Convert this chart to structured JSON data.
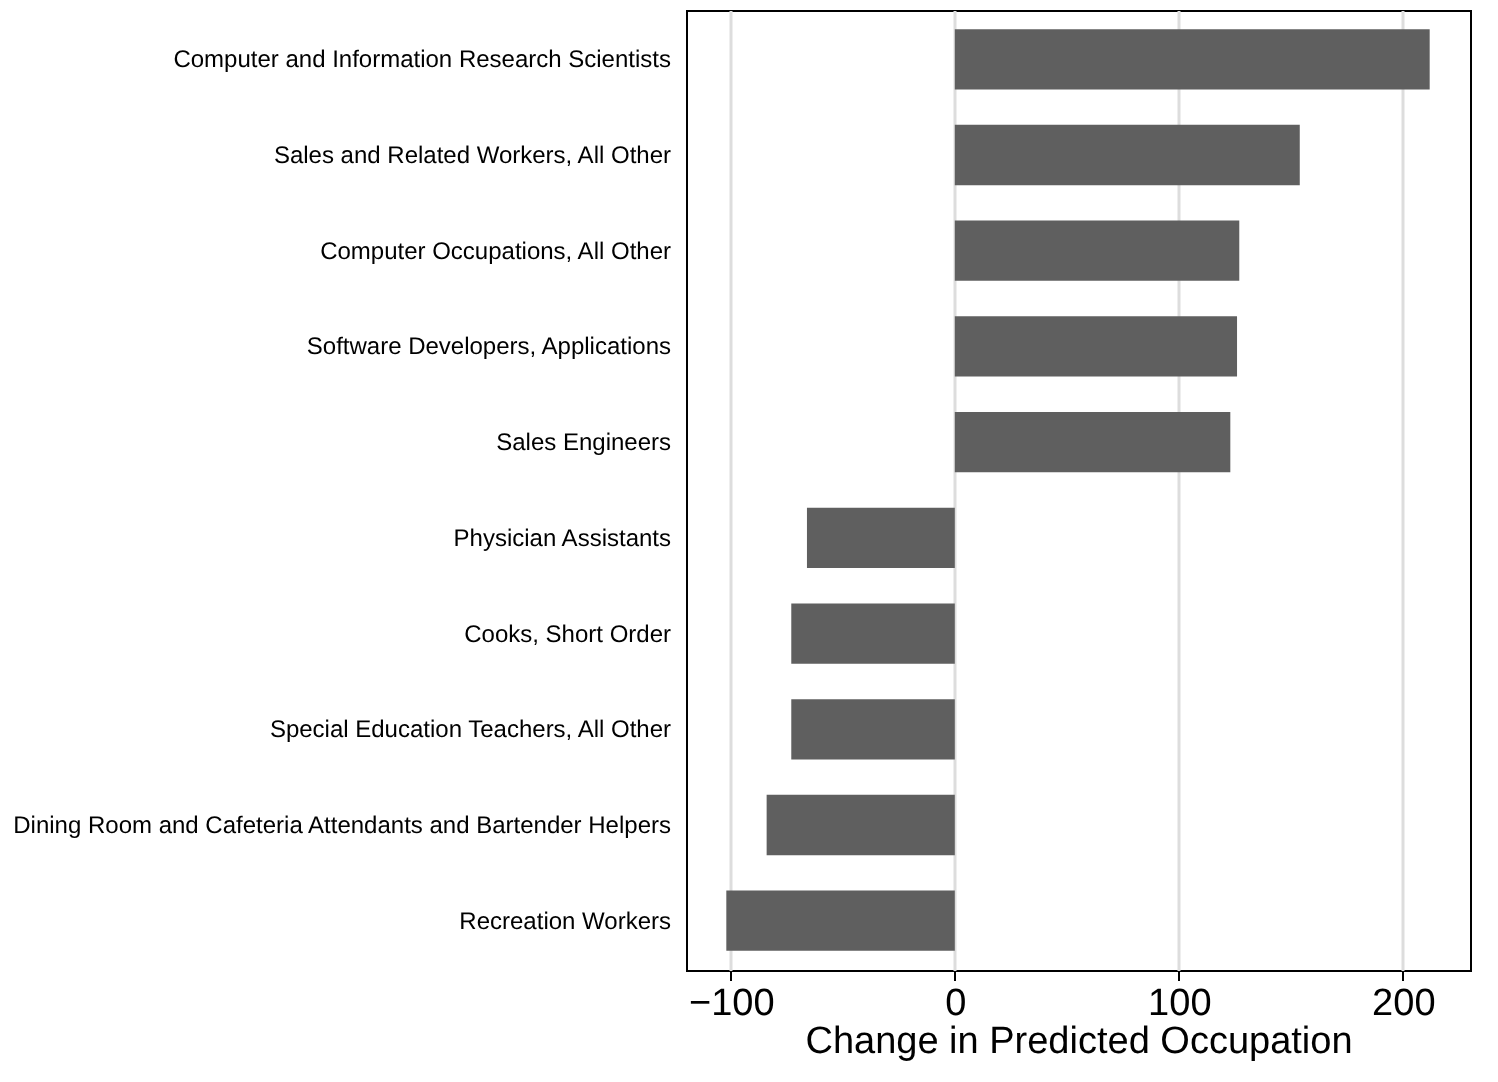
{
  "chart_data": {
    "type": "bar",
    "orientation": "horizontal",
    "xlabel": "Change in Predicted Occupation",
    "categories": [
      "Computer and Information Research Scientists",
      "Sales and Related Workers, All Other",
      "Computer Occupations, All Other",
      "Software Developers, Applications",
      "Sales Engineers",
      "Physician Assistants",
      "Cooks, Short Order",
      "Special Education Teachers, All Other",
      "Dining Room and Cafeteria Attendants and Bartender Helpers",
      "Recreation Workers"
    ],
    "values": [
      212,
      154,
      127,
      126,
      123,
      -66,
      -73,
      -73,
      -84,
      -102
    ],
    "color": "#5f5f5f",
    "xlim": [
      -120,
      230
    ],
    "xticks": [
      -100,
      0,
      100,
      200
    ],
    "grid": "x"
  }
}
